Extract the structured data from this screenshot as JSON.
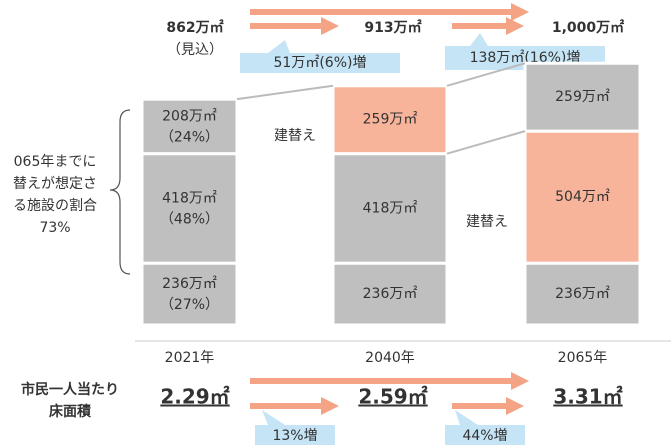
{
  "chart_data": {
    "type": "bar",
    "stacked": true,
    "categories": [
      "2021年",
      "2040年",
      "2065年"
    ],
    "series": [
      {
        "colors": [
          "#bfbfbf",
          "#bfbfbf",
          "#bfbfbf"
        ],
        "values": [
          236,
          236,
          236
        ],
        "value_labels": [
          "236万㎡",
          "236万㎡",
          "236万㎡"
        ],
        "share_labels": [
          "（27%）",
          null,
          null
        ]
      },
      {
        "colors": [
          "#bfbfbf",
          "#bfbfbf",
          "#f8b49a"
        ],
        "values": [
          418,
          418,
          504
        ],
        "value_labels": [
          "418万㎡",
          "418万㎡",
          "504万㎡"
        ],
        "share_labels": [
          "（48%）",
          null,
          null
        ]
      },
      {
        "colors": [
          "#bfbfbf",
          "#f8b49a",
          "#bfbfbf"
        ],
        "values": [
          208,
          259,
          259
        ],
        "value_labels": [
          "208万㎡",
          "259万㎡",
          "259万㎡"
        ],
        "share_labels": [
          "（24%）",
          null,
          null
        ]
      }
    ],
    "totals": [
      862,
      913,
      1000
    ],
    "total_labels": [
      "862万㎡",
      "913万㎡",
      "1,000万㎡"
    ],
    "total_note": "（見込）",
    "increase_labels": [
      "51万㎡(6%)増",
      "138万㎡(16%)増"
    ],
    "rebuild_label": "建替え",
    "brace_text": [
      "065年までに",
      "替えが想定さ",
      "る施設の割合",
      "73%"
    ],
    "per_capita_title": [
      "市民一人当たり",
      "床面積"
    ],
    "per_capita": [
      2.29,
      2.59,
      3.31
    ],
    "per_capita_labels": [
      "2.29㎡",
      "2.59㎡",
      "3.31㎡"
    ],
    "per_capita_increase_labels": [
      "13%増",
      "44%増"
    ]
  }
}
